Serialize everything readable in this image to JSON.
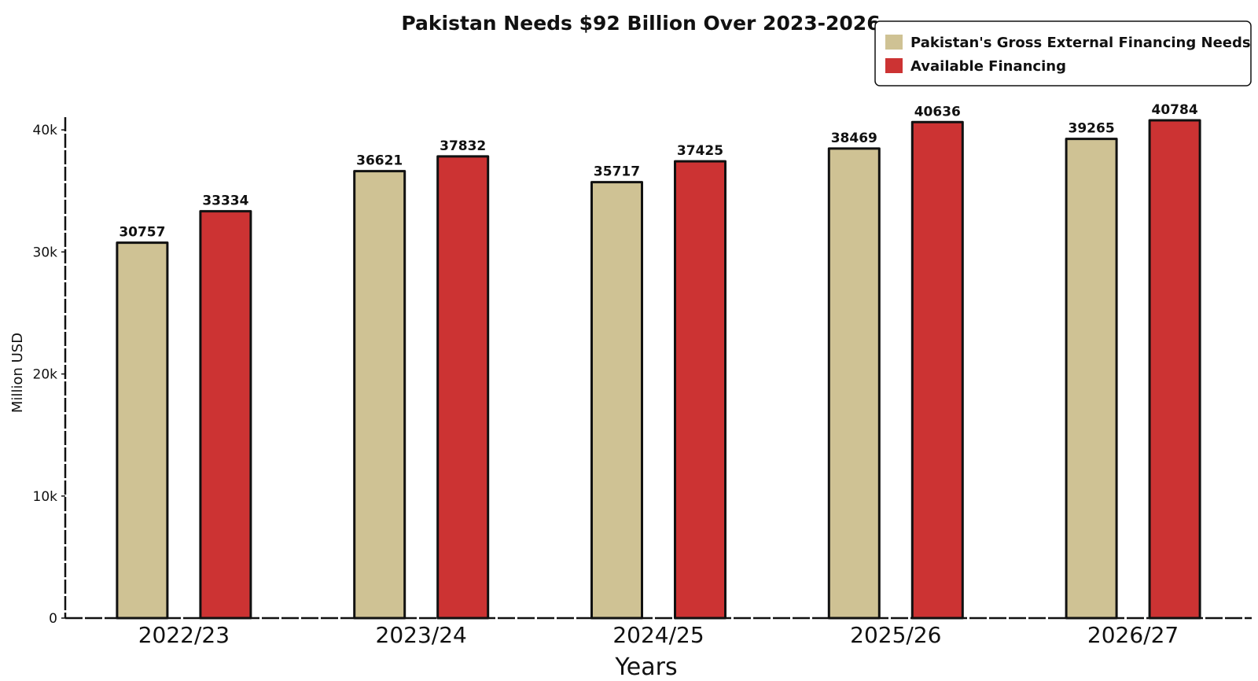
{
  "chart_data": {
    "type": "bar",
    "title": "Pakistan Needs $92 Billion Over 2023-2026",
    "xlabel": "Years",
    "ylabel": "Million USD",
    "categories": [
      "2022/23",
      "2023/24",
      "2024/25",
      "2025/26",
      "2026/27"
    ],
    "series": [
      {
        "name": "Pakistan's Gross External Financing Needs",
        "color": "#cfc294",
        "values": [
          30757,
          36621,
          35717,
          38469,
          39265
        ]
      },
      {
        "name": "Available Financing",
        "color": "#cc3333",
        "values": [
          33334,
          37832,
          37425,
          40636,
          40784
        ]
      }
    ],
    "yticks": [
      0,
      10000,
      20000,
      30000,
      40000
    ],
    "ytick_labels": [
      "0",
      "10k",
      "20k",
      "30k",
      "40k"
    ],
    "ylim": [
      0,
      40784
    ],
    "grid": false,
    "legend_position": "top-right"
  }
}
